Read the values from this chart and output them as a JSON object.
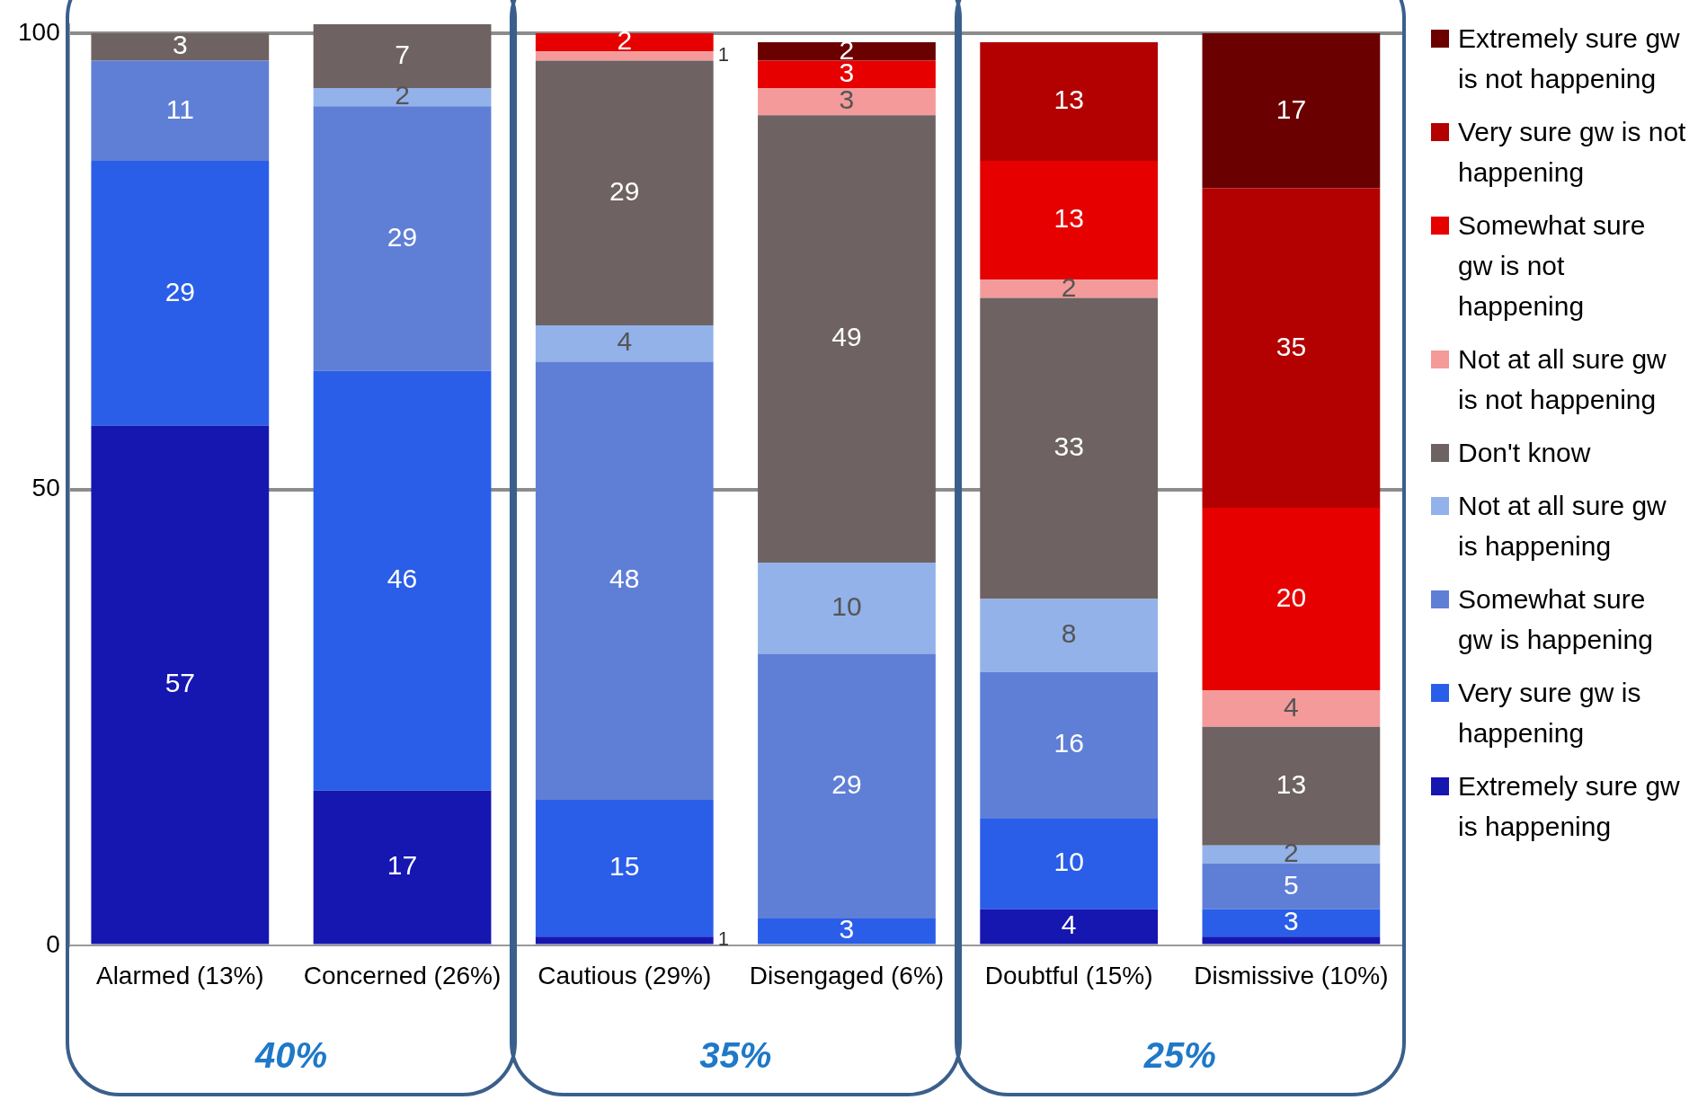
{
  "chart_data": {
    "type": "bar",
    "stacked": true,
    "categories": [
      "Alarmed (13%)",
      "Concerned (26%)",
      "Cautious (29%)",
      "Disengaged (6%)",
      "Doubtful (15%)",
      "Dismissive (10%)"
    ],
    "ylim": [
      0,
      101
    ],
    "data_labels": true,
    "yticks": [
      0,
      50,
      100
    ],
    "grid": "y",
    "legend": "right",
    "series": [
      {
        "name": "Extremely sure gw is happening",
        "color": "#1616b0",
        "values": [
          57,
          17,
          1,
          null,
          4,
          1
        ],
        "value_labels": [
          "57",
          "17",
          "1",
          null,
          "4",
          null
        ]
      },
      {
        "name": "Very sure gw is happening",
        "color": "#2a5ee8",
        "values": [
          29,
          46,
          15,
          3,
          10,
          3
        ]
      },
      {
        "name": "Somewhat sure gw is happening",
        "color": "#5f7fd6",
        "values": [
          11,
          29,
          48,
          29,
          16,
          5
        ]
      },
      {
        "name": "Not at all sure gw is happening",
        "color": "#93b2ea",
        "values": [
          null,
          2,
          4,
          10,
          8,
          2
        ]
      },
      {
        "name": "Don't know",
        "color": "#6e6262",
        "values": [
          3,
          7,
          29,
          49,
          33,
          13
        ]
      },
      {
        "name": "Not at all sure gw is not happening",
        "color": "#f49a9a",
        "values": [
          null,
          null,
          1,
          3,
          2,
          4
        ]
      },
      {
        "name": "Somewhat sure gw is not happening",
        "color": "#e60000",
        "values": [
          null,
          null,
          2,
          3,
          13,
          20
        ]
      },
      {
        "name": "Very sure gw is not happening",
        "color": "#b30000",
        "values": [
          null,
          null,
          null,
          null,
          13,
          35
        ]
      },
      {
        "name": "Extremely sure gw is not happening",
        "color": "#6a0000",
        "values": [
          null,
          null,
          null,
          2,
          null,
          17
        ]
      }
    ],
    "annotations": [
      "40%",
      "35%",
      "25%"
    ]
  }
}
